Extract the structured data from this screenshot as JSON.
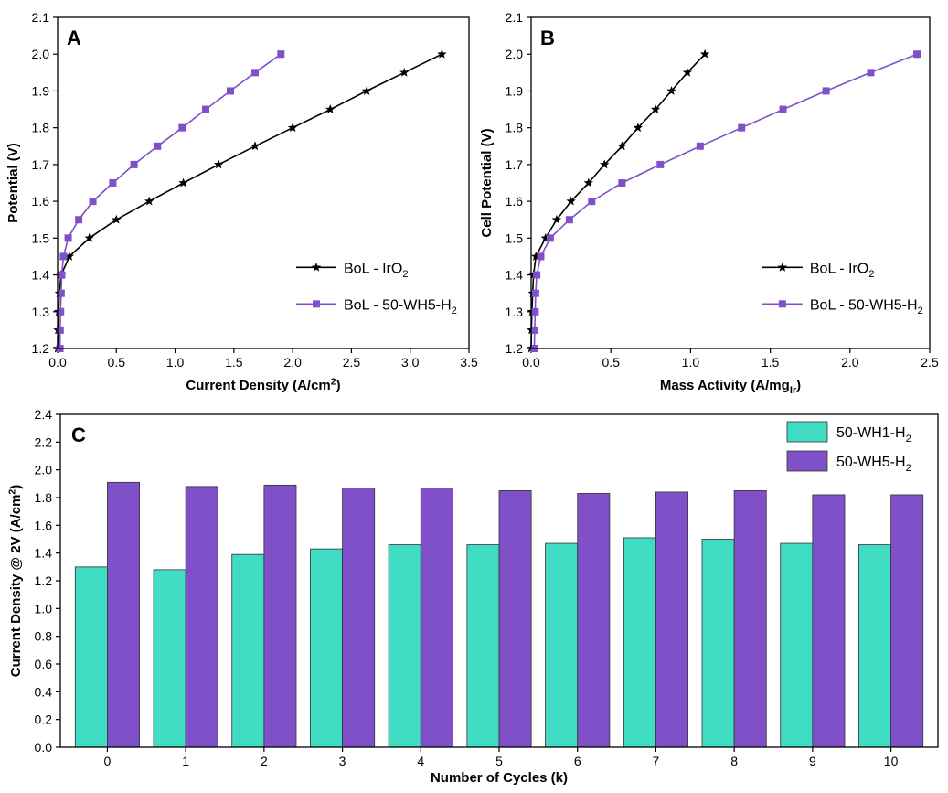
{
  "chart_data": [
    {
      "type": "line",
      "panel_label": "A",
      "xlabel": "Current Density (A/cm²)",
      "ylabel": "Potential (V)",
      "xlim": [
        0,
        3.5
      ],
      "ylim": [
        1.2,
        2.1
      ],
      "x_ticks": [
        "0.0",
        "0.5",
        "1.0",
        "1.5",
        "2.0",
        "2.5",
        "3.0",
        "3.5"
      ],
      "y_ticks": [
        "1.2",
        "1.3",
        "1.4",
        "1.5",
        "1.6",
        "1.7",
        "1.8",
        "1.9",
        "2.0",
        "2.1"
      ],
      "legend_position": "lower-right",
      "series": [
        {
          "name": "BoL - IrO₂",
          "color": "#000000",
          "marker": "star",
          "x": [
            0.0,
            0.003,
            0.008,
            0.015,
            0.03,
            0.1,
            0.27,
            0.5,
            0.78,
            1.07,
            1.37,
            1.68,
            2.0,
            2.32,
            2.63,
            2.95,
            3.27
          ],
          "y": [
            1.2,
            1.25,
            1.3,
            1.35,
            1.4,
            1.45,
            1.5,
            1.55,
            1.6,
            1.65,
            1.7,
            1.75,
            1.8,
            1.85,
            1.9,
            1.95,
            2.0
          ]
        },
        {
          "name": "BoL - 50-WH5-H₂",
          "color": "#8050C8",
          "marker": "square",
          "x": [
            0.02,
            0.022,
            0.025,
            0.03,
            0.035,
            0.05,
            0.09,
            0.18,
            0.3,
            0.47,
            0.65,
            0.85,
            1.06,
            1.26,
            1.47,
            1.68,
            1.9
          ],
          "y": [
            1.2,
            1.25,
            1.3,
            1.35,
            1.4,
            1.45,
            1.5,
            1.55,
            1.6,
            1.65,
            1.7,
            1.75,
            1.8,
            1.85,
            1.9,
            1.95,
            2.0
          ]
        }
      ]
    },
    {
      "type": "line",
      "panel_label": "B",
      "xlabel": "Mass Activity (A/mgIr)",
      "ylabel": "Cell Potential (V)",
      "xlim": [
        0,
        2.5
      ],
      "ylim": [
        1.2,
        2.1
      ],
      "x_ticks": [
        "0.0",
        "0.5",
        "1.0",
        "1.5",
        "2.0",
        "2.5"
      ],
      "y_ticks": [
        "1.2",
        "1.3",
        "1.4",
        "1.5",
        "1.6",
        "1.7",
        "1.8",
        "1.9",
        "2.0",
        "2.1"
      ],
      "legend_position": "lower-right",
      "series": [
        {
          "name": "BoL - IrO₂",
          "color": "#000000",
          "marker": "star",
          "x": [
            0.0,
            0.002,
            0.005,
            0.01,
            0.015,
            0.03,
            0.09,
            0.16,
            0.25,
            0.36,
            0.46,
            0.57,
            0.67,
            0.78,
            0.88,
            0.98,
            1.09
          ],
          "y": [
            1.2,
            1.25,
            1.3,
            1.35,
            1.4,
            1.45,
            1.5,
            1.55,
            1.6,
            1.65,
            1.7,
            1.75,
            1.8,
            1.85,
            1.9,
            1.95,
            2.0
          ]
        },
        {
          "name": "BoL - 50-WH5-H₂",
          "color": "#8050C8",
          "marker": "square",
          "x": [
            0.02,
            0.022,
            0.025,
            0.028,
            0.035,
            0.06,
            0.12,
            0.24,
            0.38,
            0.57,
            0.81,
            1.06,
            1.32,
            1.58,
            1.85,
            2.13,
            2.42
          ],
          "y": [
            1.2,
            1.25,
            1.3,
            1.35,
            1.4,
            1.45,
            1.5,
            1.55,
            1.6,
            1.65,
            1.7,
            1.75,
            1.8,
            1.85,
            1.9,
            1.95,
            2.0
          ]
        }
      ]
    },
    {
      "type": "bar",
      "panel_label": "C",
      "xlabel": "Number of Cycles (k)",
      "ylabel": "Current Density @ 2V (A/cm²)",
      "categories": [
        "0",
        "1",
        "2",
        "3",
        "4",
        "5",
        "6",
        "7",
        "8",
        "9",
        "10"
      ],
      "ylim": [
        0,
        2.4
      ],
      "y_ticks": [
        "0.0",
        "0.2",
        "0.4",
        "0.6",
        "0.8",
        "1.0",
        "1.2",
        "1.4",
        "1.6",
        "1.8",
        "2.0",
        "2.2",
        "2.4"
      ],
      "legend_position": "top-right",
      "series": [
        {
          "name": "50-WH1-H₂",
          "color": "#40DCC4",
          "values": [
            1.3,
            1.28,
            1.39,
            1.43,
            1.46,
            1.46,
            1.47,
            1.51,
            1.5,
            1.47,
            1.46
          ]
        },
        {
          "name": "50-WH5-H₂",
          "color": "#7F50C8",
          "values": [
            1.91,
            1.88,
            1.89,
            1.87,
            1.87,
            1.85,
            1.83,
            1.84,
            1.85,
            1.82,
            1.82
          ]
        }
      ]
    }
  ]
}
